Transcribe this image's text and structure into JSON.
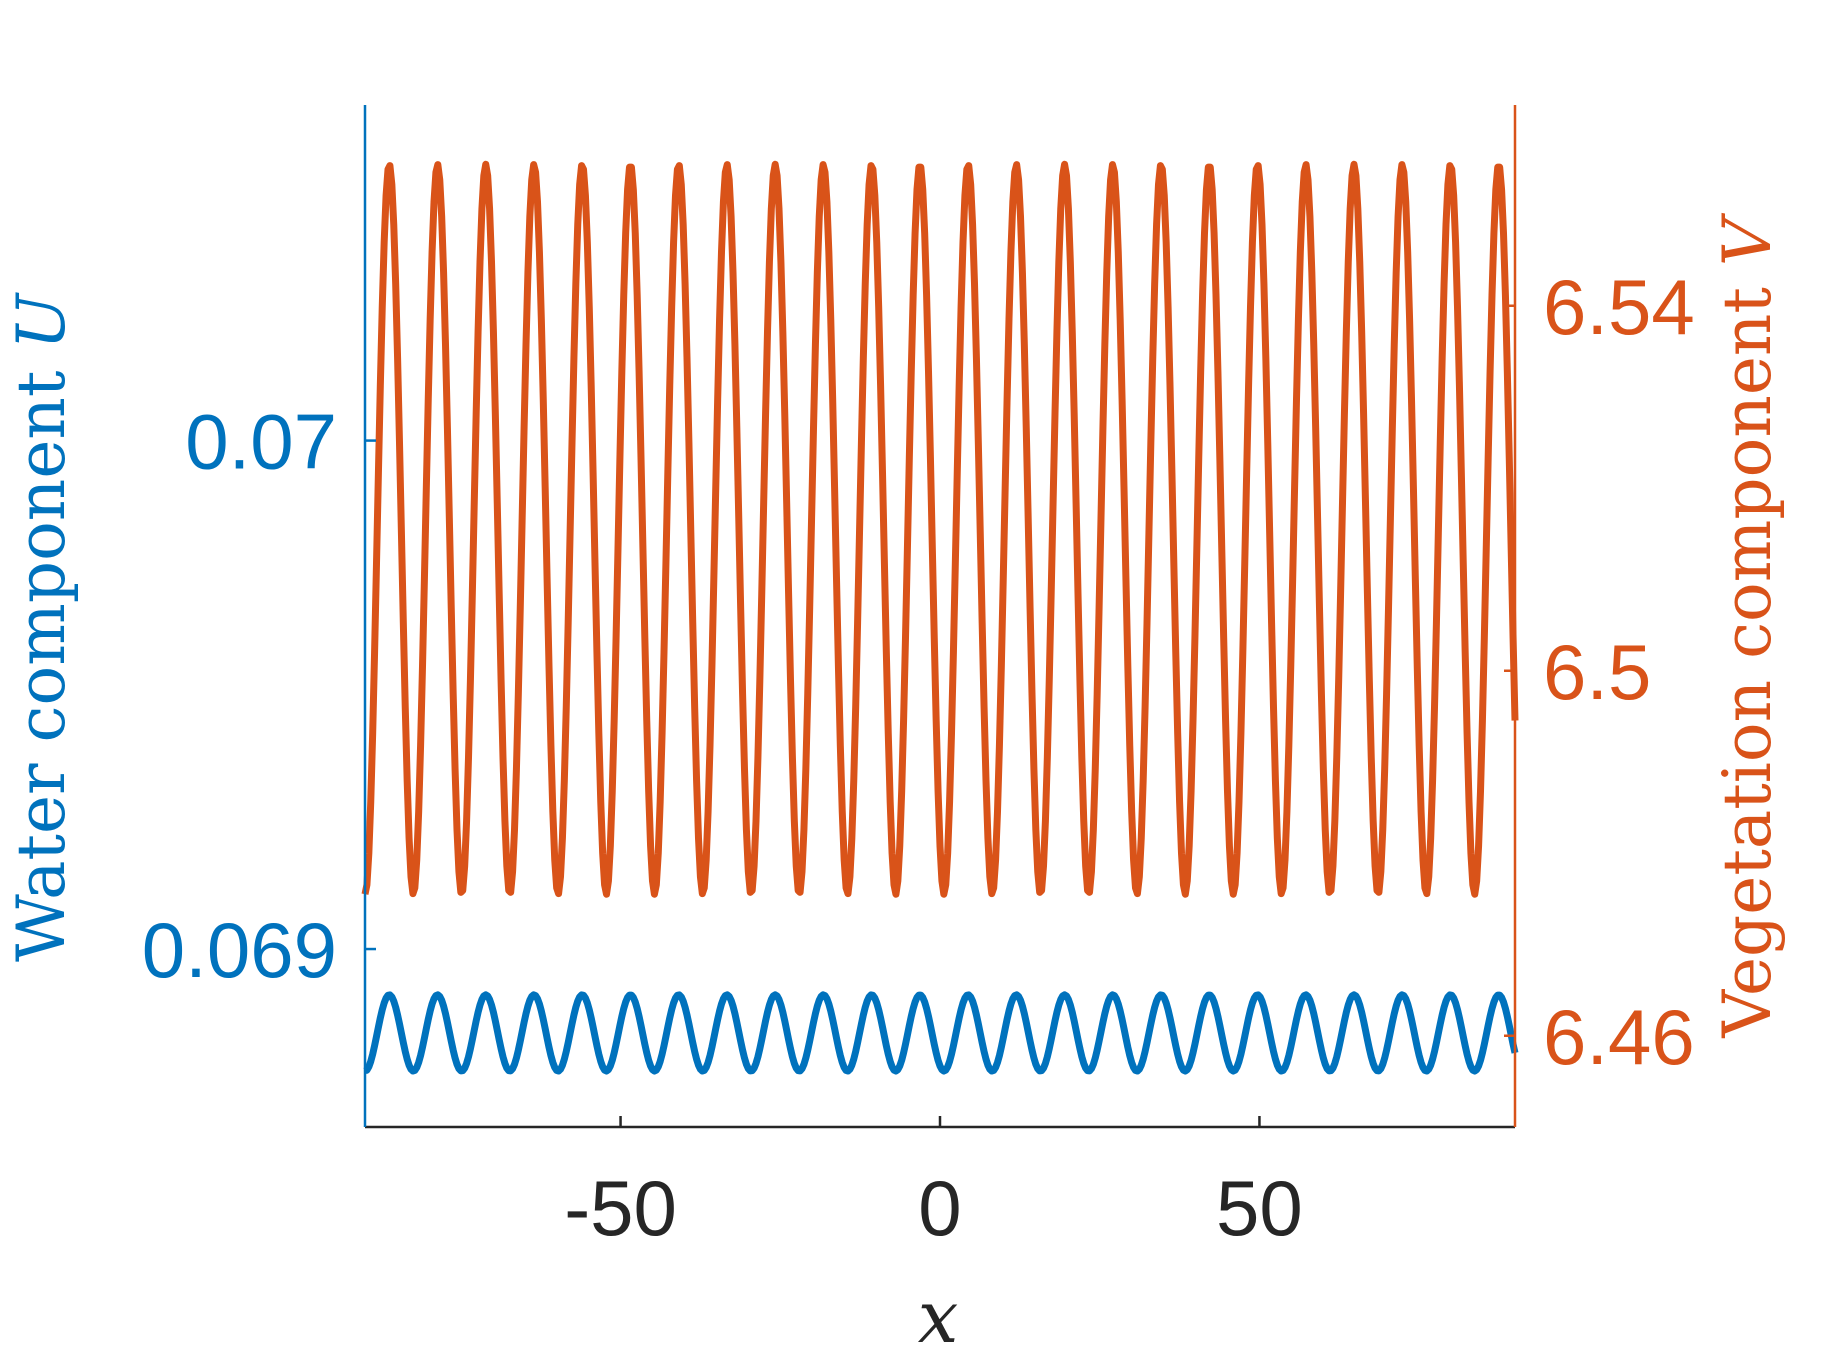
{
  "chart_data": {
    "type": "line",
    "title": "",
    "xlabel": "x",
    "xlim": [
      -90,
      90
    ],
    "xticks": [
      -50,
      0,
      50
    ],
    "xtick_labels": [
      "-50",
      "0",
      "50"
    ],
    "left_axis": {
      "label_text": "Water component ",
      "label_var": "U",
      "ylim": [
        0.06865,
        0.07066
      ],
      "ticks": [
        0.069,
        0.07
      ],
      "tick_labels": [
        "0.069",
        "0.07"
      ],
      "color": "#0072BD"
    },
    "right_axis": {
      "label_text": "Vegetation component ",
      "label_var": "V",
      "ylim": [
        6.45,
        6.562
      ],
      "ticks": [
        6.46,
        6.5,
        6.54
      ],
      "tick_labels": [
        "6.46",
        "6.5",
        "6.54"
      ],
      "color": "#D95319"
    },
    "series": [
      {
        "axis": "left",
        "color": "#0072BD",
        "form": "sinusoid",
        "min": 0.06876,
        "max": 0.06891,
        "period": 7.55,
        "peak_x": -86.2,
        "sample_step": 0.3
      },
      {
        "axis": "right",
        "color": "#D95319",
        "form": "sinusoid",
        "min": 6.4755,
        "max": 6.5555,
        "period": 7.55,
        "peak_x": -86.2,
        "sample_step": 0.3
      }
    ],
    "grid": false,
    "legend": "none"
  }
}
